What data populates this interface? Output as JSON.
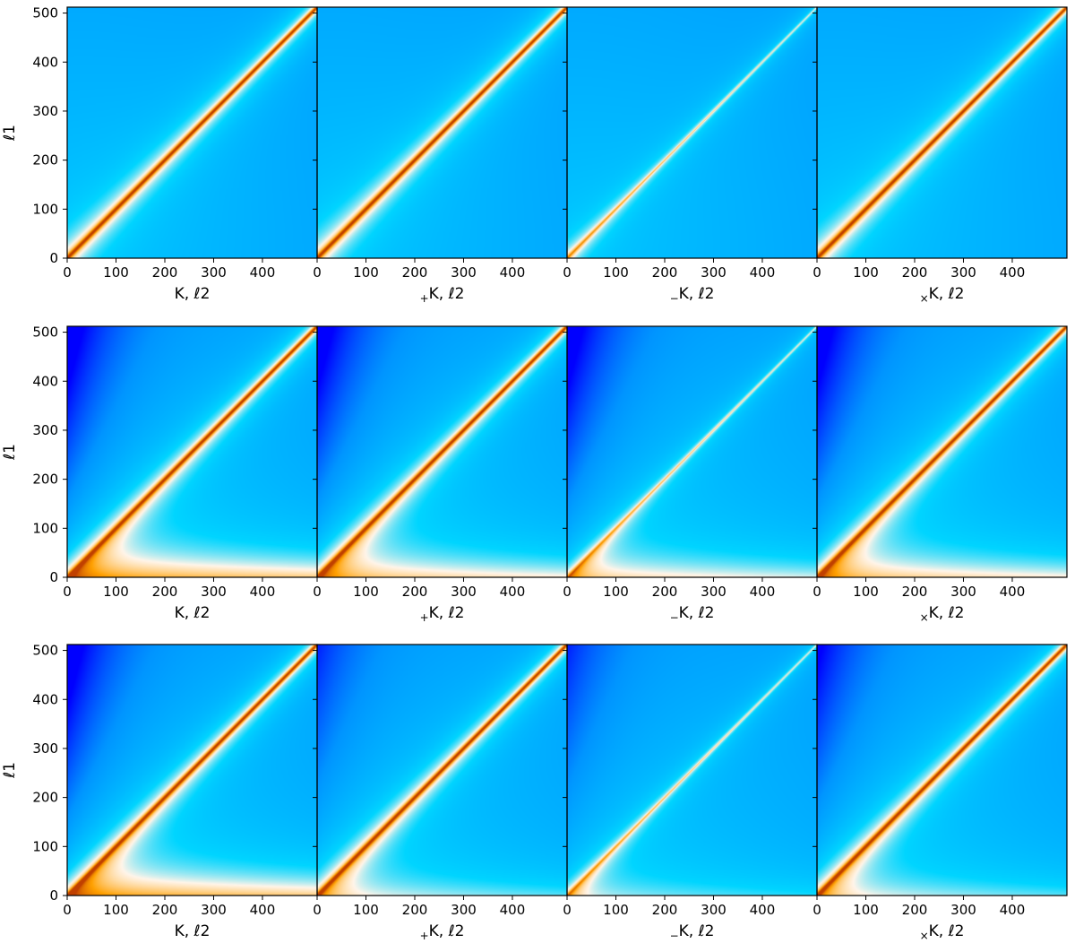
{
  "chart_data": {
    "type": "heatmap",
    "layout": {
      "rows": 3,
      "cols": 4
    },
    "x_ticks": [
      0,
      100,
      200,
      300,
      400
    ],
    "y_ticks": [
      0,
      100,
      200,
      300,
      400,
      500
    ],
    "xlim": [
      0,
      512
    ],
    "ylim": [
      0,
      512
    ],
    "ylabel": "ℓ1",
    "xlabels": [
      {
        "prefix": "",
        "text": "K, ℓ2"
      },
      {
        "prefix": "+",
        "text": "K, ℓ2"
      },
      {
        "prefix": "−",
        "text": "K, ℓ2"
      },
      {
        "prefix": "×",
        "text": "K, ℓ2"
      }
    ],
    "colors": {
      "dark_blue": "#0000ff",
      "blue": "#0095ff",
      "cyan": "#00d5ff",
      "white": "#fff5ea",
      "orange": "#ffa000",
      "dark_orange": "#c04000"
    },
    "panels": [
      {
        "row": 0,
        "col": 0,
        "diag_strength": 1.0,
        "low_band": 0.0,
        "blue_corner": 0.0
      },
      {
        "row": 0,
        "col": 1,
        "diag_strength": 1.0,
        "low_band": 0.0,
        "blue_corner": 0.0
      },
      {
        "row": 0,
        "col": 2,
        "diag_strength": 0.35,
        "low_band": 0.0,
        "blue_corner": 0.0
      },
      {
        "row": 0,
        "col": 3,
        "diag_strength": 1.0,
        "low_band": 0.0,
        "blue_corner": 0.0
      },
      {
        "row": 1,
        "col": 0,
        "diag_strength": 1.0,
        "low_band": 1.0,
        "blue_corner": 1.0
      },
      {
        "row": 1,
        "col": 1,
        "diag_strength": 1.0,
        "low_band": 0.8,
        "blue_corner": 1.0
      },
      {
        "row": 1,
        "col": 2,
        "diag_strength": 0.35,
        "low_band": 0.7,
        "blue_corner": 1.0
      },
      {
        "row": 1,
        "col": 3,
        "diag_strength": 1.0,
        "low_band": 0.8,
        "blue_corner": 1.0
      },
      {
        "row": 2,
        "col": 0,
        "diag_strength": 1.0,
        "low_band": 1.0,
        "blue_corner": 1.0
      },
      {
        "row": 2,
        "col": 1,
        "diag_strength": 1.0,
        "low_band": 0.5,
        "blue_corner": 0.6
      },
      {
        "row": 2,
        "col": 2,
        "diag_strength": 0.35,
        "low_band": 0.4,
        "blue_corner": 0.6
      },
      {
        "row": 2,
        "col": 3,
        "diag_strength": 1.0,
        "low_band": 0.5,
        "blue_corner": 0.8
      }
    ]
  }
}
